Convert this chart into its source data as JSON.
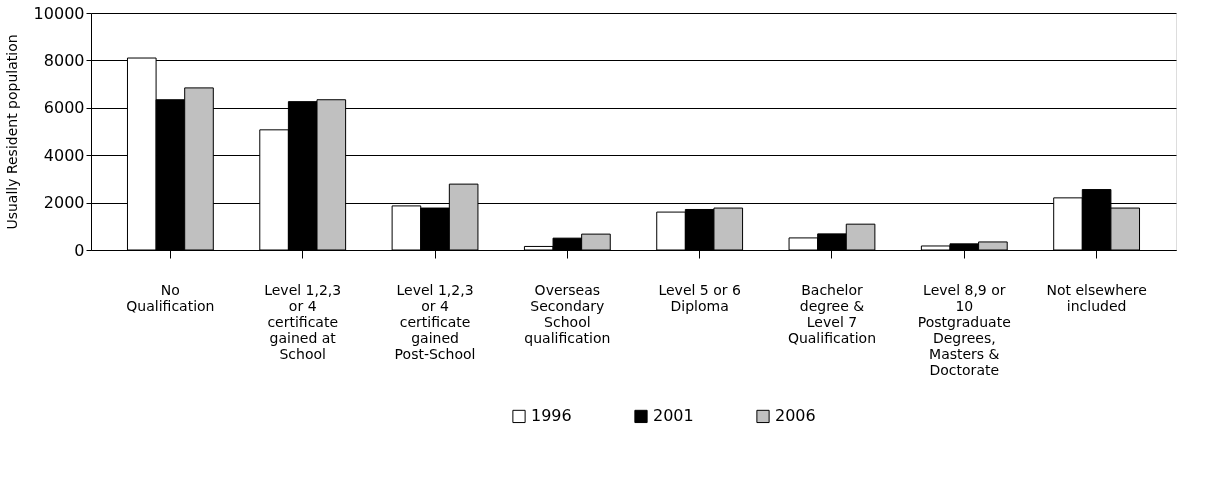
{
  "chart_data": {
    "type": "bar",
    "ylabel": "Usually Resident population",
    "categories": [
      "No Qualification",
      "Level 1,2,3 or 4 certificate gained at School",
      "Level 1,2,3 or 4 certificate gained Post-School",
      "Overseas Secondary School qualification",
      "Level 5 or 6 Diploma",
      "Bachelor degree & Level 7 Qualification",
      "Level 8,9 or 10 Postgraduate Degrees, Masters & Doctorate",
      "Not elsewhere included"
    ],
    "series": [
      {
        "name": "1996",
        "color": "#ffffff",
        "values": [
          8100,
          5070,
          1860,
          150,
          1600,
          510,
          170,
          2200
        ]
      },
      {
        "name": "2001",
        "color": "#000000",
        "values": [
          6340,
          6260,
          1770,
          500,
          1710,
          680,
          260,
          2550
        ]
      },
      {
        "name": "2006",
        "color": "#c0c0c0",
        "values": [
          6840,
          6340,
          2780,
          670,
          1770,
          1090,
          340,
          1770
        ]
      }
    ],
    "ylim": [
      0,
      10000
    ],
    "yticks": [
      0,
      2000,
      4000,
      6000,
      8000,
      10000
    ],
    "grid": "y",
    "legend": "bottom"
  }
}
